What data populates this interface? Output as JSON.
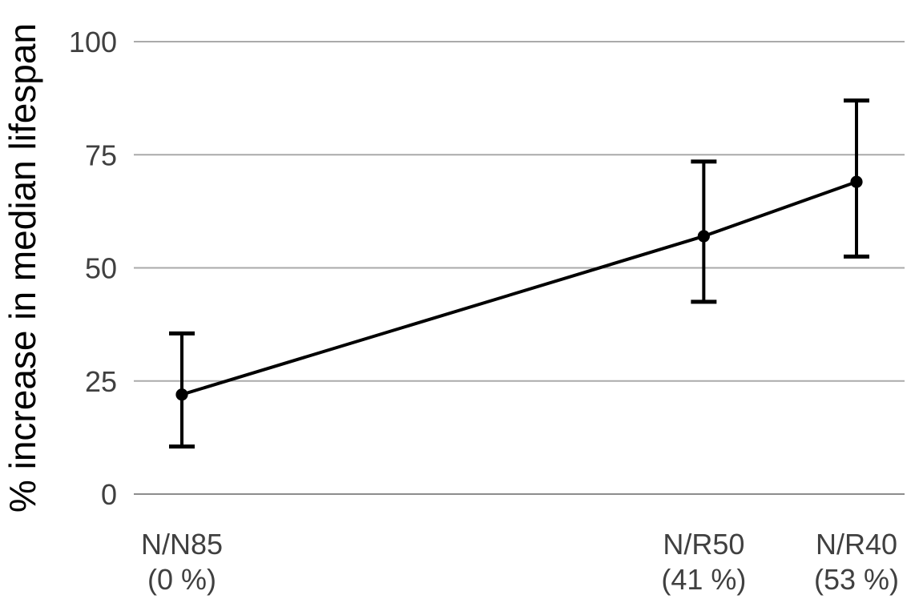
{
  "chart_data": {
    "type": "line",
    "title": "",
    "xlabel": "",
    "ylabel": "% increase in median lifespan",
    "ylim": [
      0,
      100
    ],
    "yticks": [
      0,
      25,
      50,
      75,
      100
    ],
    "x_domain": [
      0,
      53
    ],
    "grid": "horizontal-only",
    "legend": "none",
    "marker": "filled-circle",
    "error_bars": true,
    "series": [
      {
        "name": "median lifespan increase",
        "points": [
          {
            "label": "N/N85",
            "sublabel": "(0 %)",
            "x": 0,
            "y": 22,
            "ci_low": 10.5,
            "ci_high": 35.5
          },
          {
            "label": "N/R50",
            "sublabel": "(41 %)",
            "x": 41,
            "y": 57,
            "ci_low": 42.5,
            "ci_high": 73.5
          },
          {
            "label": "N/R40",
            "sublabel": "(53 %)",
            "x": 53,
            "y": 69,
            "ci_low": 52.5,
            "ci_high": 87
          }
        ]
      }
    ],
    "colors": {
      "background": "#ffffff",
      "line": "#000000",
      "marker": "#000000",
      "error_bar": "#000000",
      "gridline": "#aaaaaa",
      "zero_line": "#8c8c8c",
      "tick_text": "#404040",
      "axis_label_text": "#000000"
    }
  }
}
